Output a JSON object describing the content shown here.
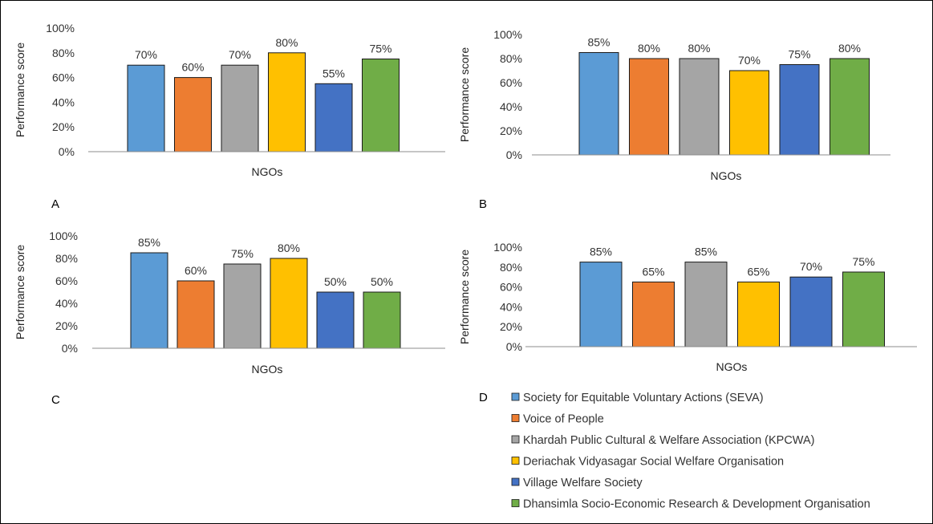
{
  "legend": [
    {
      "label": "Society for Equitable Voluntary Actions (SEVA)",
      "color": "#5B9BD5"
    },
    {
      "label": "Voice of People",
      "color": "#ED7D31"
    },
    {
      "label": "Khardah Public Cultural & Welfare Association (KPCWA)",
      "color": "#A5A5A5"
    },
    {
      "label": "Deriachak Vidyasagar Social Welfare Organisation",
      "color": "#FFC000"
    },
    {
      "label": "Village Welfare Society",
      "color": "#4472C4"
    },
    {
      "label": "Dhansimla Socio-Economic Research & Development Organisation",
      "color": "#70AD47"
    }
  ],
  "chart_data": [
    {
      "type": "bar",
      "panel": "A",
      "xlabel": "NGOs",
      "ylabel": "Performance score",
      "yticks": [
        "0%",
        "20%",
        "40%",
        "60%",
        "80%",
        "100%"
      ],
      "ylim": [
        0,
        100
      ],
      "values": [
        70,
        60,
        70,
        80,
        55,
        75
      ],
      "labels": [
        "70%",
        "60%",
        "70%",
        "80%",
        "55%",
        "75%"
      ]
    },
    {
      "type": "bar",
      "panel": "B",
      "xlabel": "NGOs",
      "ylabel": "Performance score",
      "yticks": [
        "0%",
        "20%",
        "40%",
        "60%",
        "80%",
        "100%"
      ],
      "ylim": [
        0,
        100
      ],
      "values": [
        85,
        80,
        80,
        70,
        75,
        80
      ],
      "labels": [
        "85%",
        "80%",
        "80%",
        "70%",
        "75%",
        "80%"
      ]
    },
    {
      "type": "bar",
      "panel": "C",
      "xlabel": "NGOs",
      "ylabel": "Performance score",
      "yticks": [
        "0%",
        "20%",
        "40%",
        "60%",
        "80%",
        "100%"
      ],
      "ylim": [
        0,
        100
      ],
      "values": [
        85,
        60,
        75,
        80,
        50,
        50
      ],
      "labels": [
        "85%",
        "60%",
        "75%",
        "80%",
        "50%",
        "50%"
      ]
    },
    {
      "type": "bar",
      "panel": "D",
      "xlabel": "NGOs",
      "ylabel": "Performance score",
      "yticks": [
        "0%",
        "20%",
        "40%",
        "60%",
        "80%",
        "100%"
      ],
      "ylim": [
        0,
        100
      ],
      "values": [
        85,
        65,
        85,
        65,
        70,
        75
      ],
      "labels": [
        "85%",
        "65%",
        "85%",
        "65%",
        "70%",
        "75%"
      ]
    }
  ]
}
